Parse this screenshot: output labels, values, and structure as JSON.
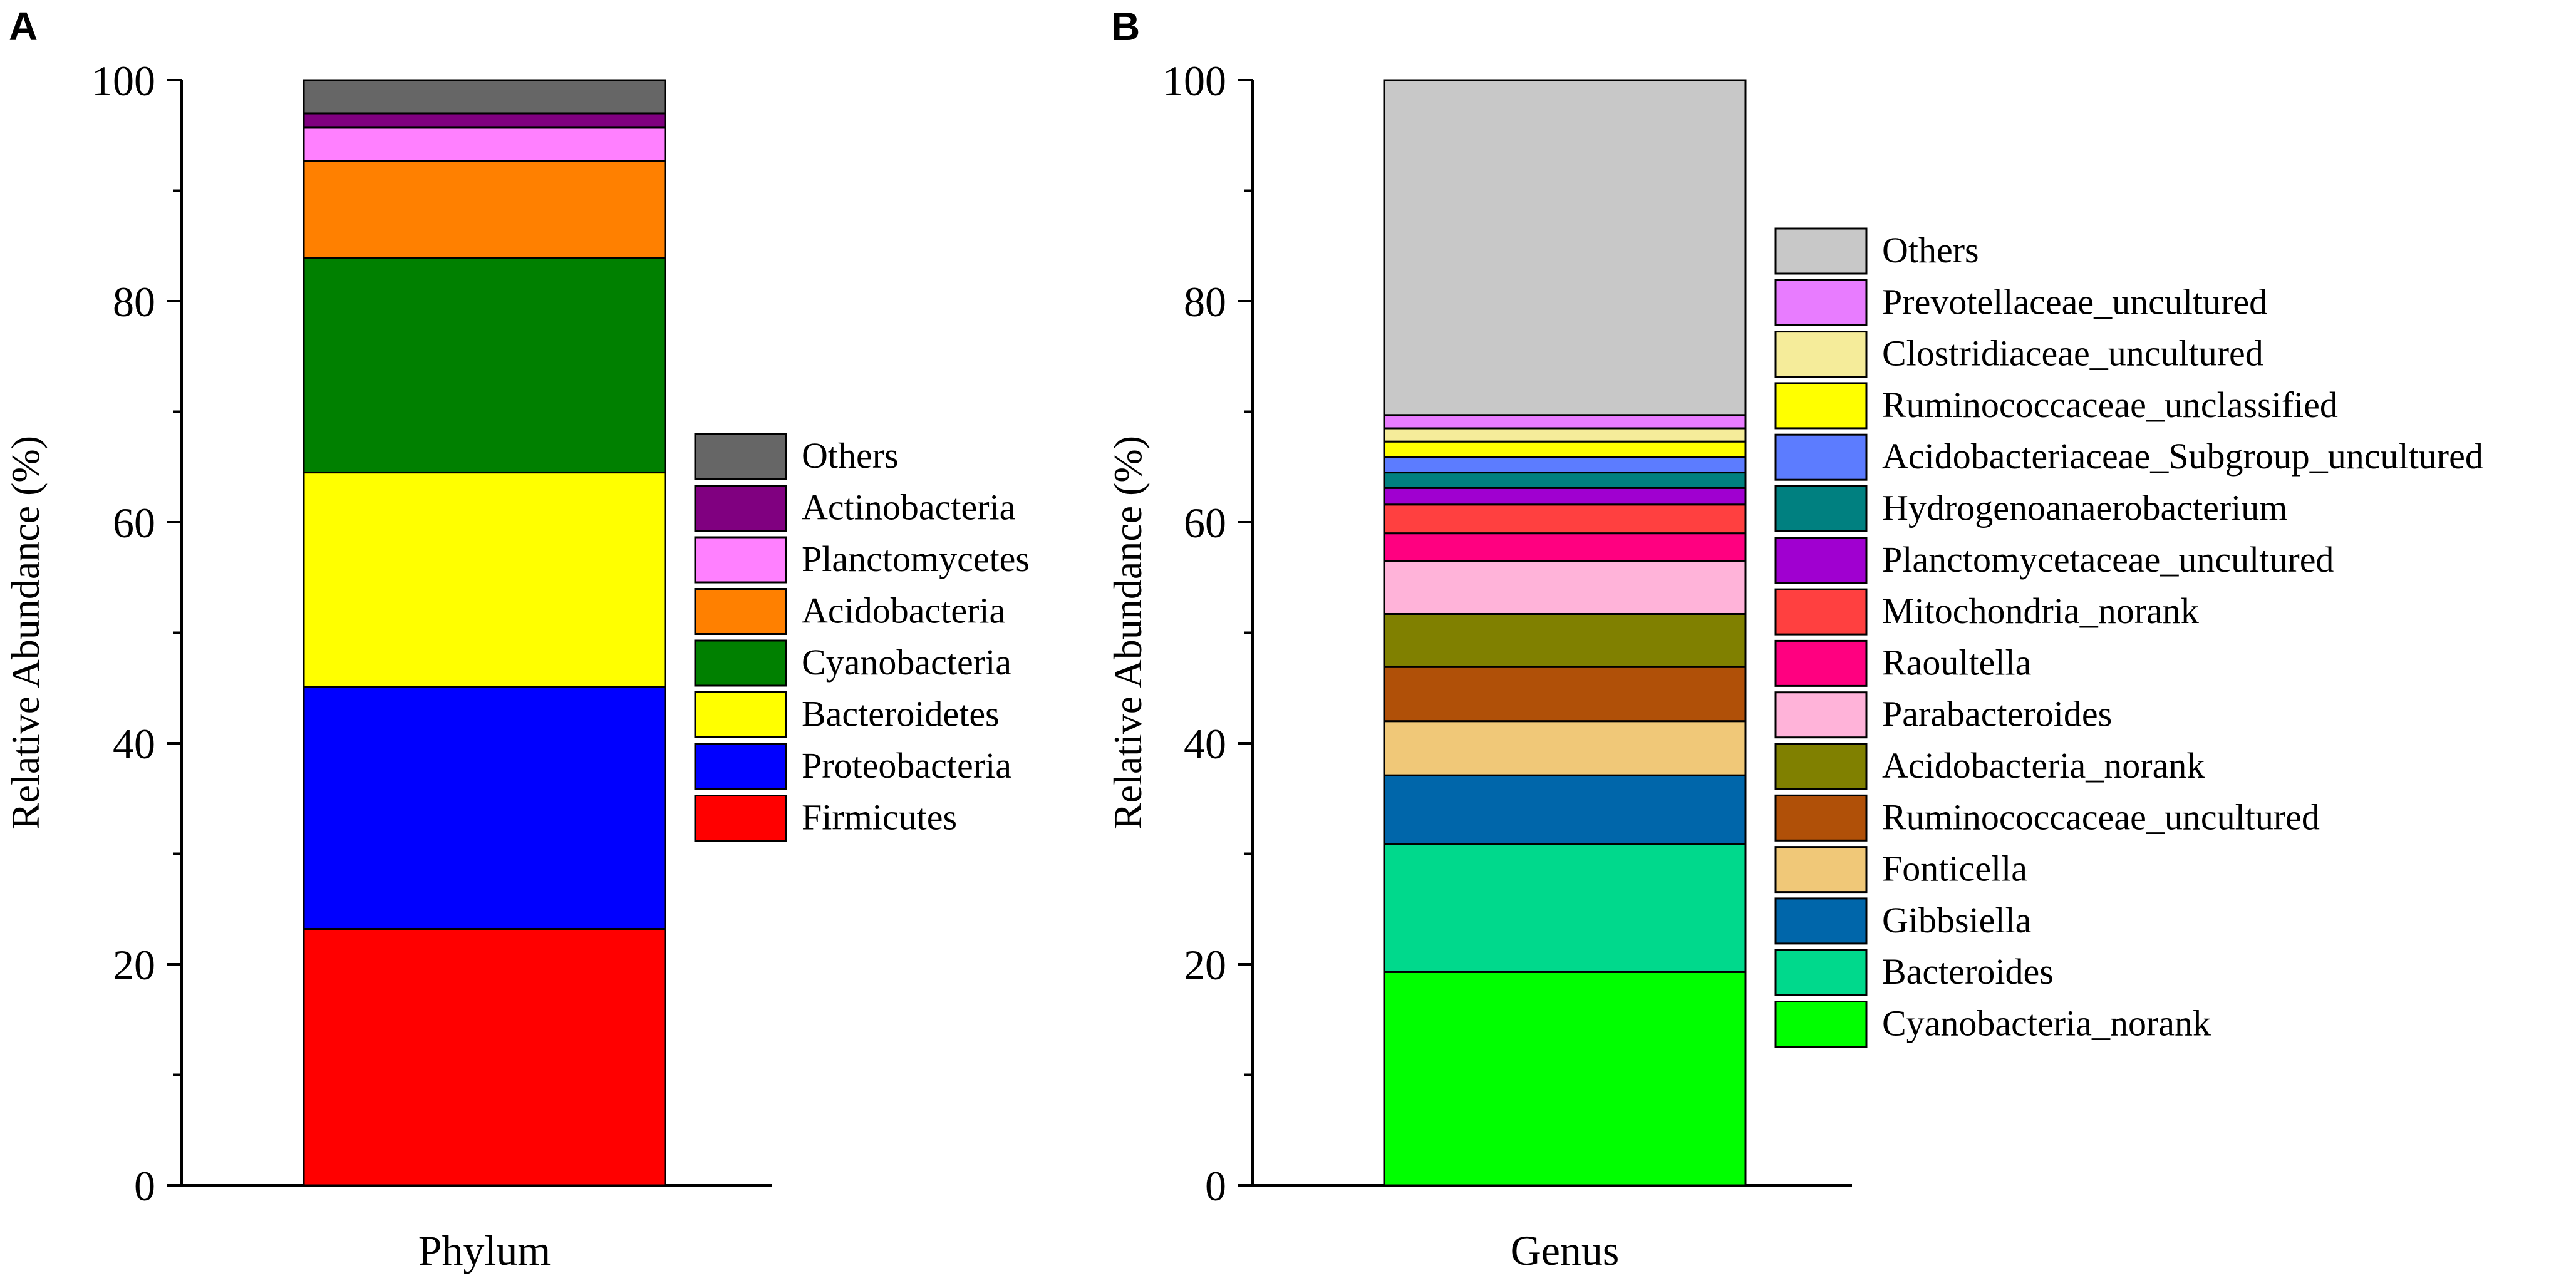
{
  "chart_data": [
    {
      "type": "stacked-bar",
      "panel_label": "A",
      "title": "",
      "xlabel": "",
      "ylabel": "Relative Abundance (%)",
      "ylim": [
        0,
        100
      ],
      "yticks": [
        0,
        20,
        40,
        60,
        80,
        100
      ],
      "categories": [
        "Phylum"
      ],
      "series": [
        {
          "name": "Firmicutes",
          "values": [
            23.2
          ],
          "color": "#ff0000"
        },
        {
          "name": "Proteobacteria",
          "values": [
            21.9
          ],
          "color": "#0000ff"
        },
        {
          "name": "Bacteroidetes",
          "values": [
            19.4
          ],
          "color": "#ffff00"
        },
        {
          "name": "Cyanobacteria",
          "values": [
            19.4
          ],
          "color": "#008000"
        },
        {
          "name": "Acidobacteria",
          "values": [
            8.8
          ],
          "color": "#ff8000"
        },
        {
          "name": "Planctomycetes",
          "values": [
            3.0
          ],
          "color": "#ff80ff"
        },
        {
          "name": "Actinobacteria",
          "values": [
            1.3
          ],
          "color": "#800080"
        },
        {
          "name": "Others",
          "values": [
            3.0
          ],
          "color": "#666666"
        }
      ],
      "legend_order": [
        "Others",
        "Actinobacteria",
        "Planctomycetes",
        "Acidobacteria",
        "Cyanobacteria",
        "Bacteroidetes",
        "Proteobacteria",
        "Firmicutes"
      ],
      "legend_position": "right"
    },
    {
      "type": "stacked-bar",
      "panel_label": "B",
      "title": "",
      "xlabel": "",
      "ylabel": "Relative Abundance (%)",
      "ylim": [
        0,
        100
      ],
      "yticks": [
        0,
        20,
        40,
        60,
        80,
        100
      ],
      "categories": [
        "Genus"
      ],
      "series": [
        {
          "name": "Cyanobacteria_norank",
          "values": [
            19.3
          ],
          "color": "#00ff00"
        },
        {
          "name": "Bacteroides",
          "values": [
            11.6
          ],
          "color": "#00d98c"
        },
        {
          "name": "Gibbsiella",
          "values": [
            6.2
          ],
          "color": "#0066aa"
        },
        {
          "name": "Fonticella",
          "values": [
            4.9
          ],
          "color": "#f0c878"
        },
        {
          "name": "Ruminococcaceae_uncultured",
          "values": [
            4.9
          ],
          "color": "#b05008"
        },
        {
          "name": "Acidobacteria_norank",
          "values": [
            4.8
          ],
          "color": "#808000"
        },
        {
          "name": "Parabacteroides",
          "values": [
            4.8
          ],
          "color": "#ffb3d9"
        },
        {
          "name": "Raoultella",
          "values": [
            2.5
          ],
          "color": "#ff0080"
        },
        {
          "name": "Mitochondria_norank",
          "values": [
            2.6
          ],
          "color": "#ff4040"
        },
        {
          "name": "Planctomycetaceae_uncultured",
          "values": [
            1.5
          ],
          "color": "#a000d0"
        },
        {
          "name": "Hydrogenoanaerobacterium",
          "values": [
            1.4
          ],
          "color": "#008080"
        },
        {
          "name": "Acidobacteriaceae_Subgroup_uncultured",
          "values": [
            1.4
          ],
          "color": "#5c7cff"
        },
        {
          "name": "Ruminococcaceae_unclassified",
          "values": [
            1.4
          ],
          "color": "#ffff00"
        },
        {
          "name": "Clostridiaceae_uncultured",
          "values": [
            1.2
          ],
          "color": "#f5ec9a"
        },
        {
          "name": "Prevotellaceae_uncultured",
          "values": [
            1.2
          ],
          "color": "#e87cff"
        },
        {
          "name": "Others",
          "values": [
            30.3
          ],
          "color": "#c8c8c8"
        }
      ],
      "legend_order": [
        "Others",
        "Prevotellaceae_uncultured",
        "Clostridiaceae_uncultured",
        "Ruminococcaceae_unclassified",
        "Acidobacteriaceae_Subgroup_uncultured",
        "Hydrogenoanaerobacterium",
        "Planctomycetaceae_uncultured",
        "Mitochondria_norank",
        "Raoultella",
        "Parabacteroides",
        "Acidobacteria_norank",
        "Ruminococcaceae_uncultured",
        "Fonticella",
        "Gibbsiella",
        "Bacteroides",
        "Cyanobacteria_norank"
      ],
      "legend_position": "right"
    }
  ]
}
